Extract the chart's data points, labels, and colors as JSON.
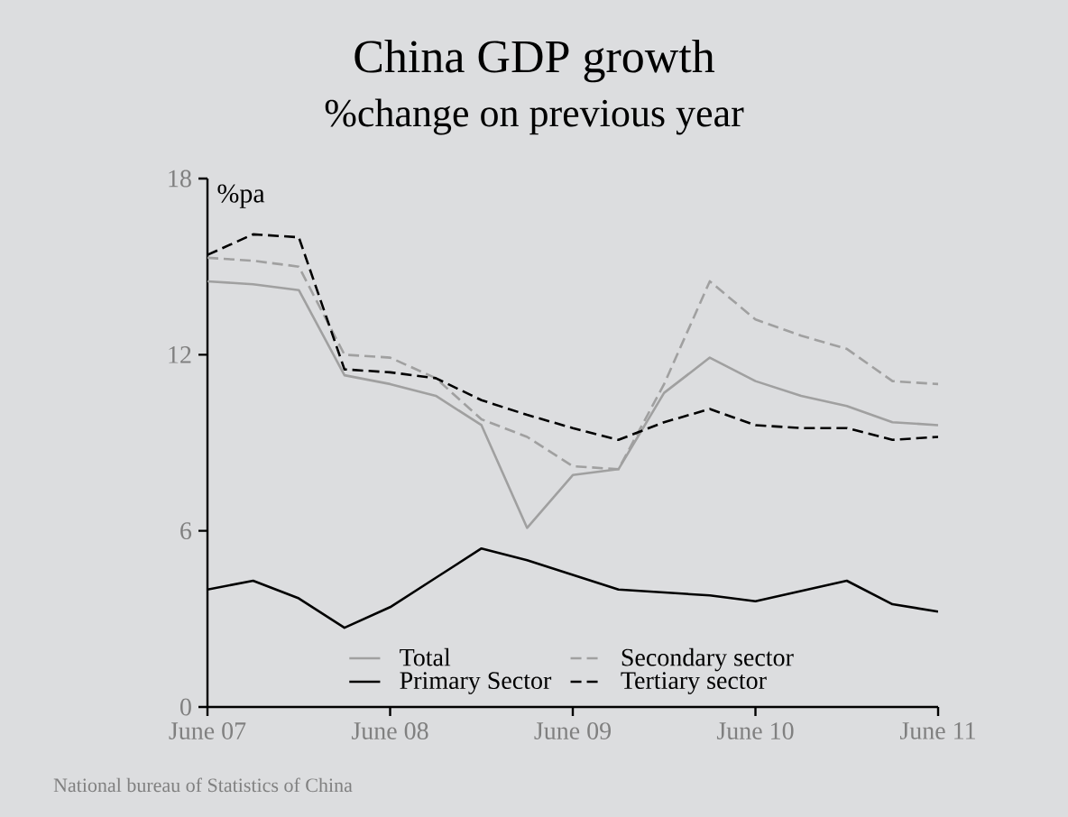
{
  "chart_data": {
    "type": "line",
    "title": "China GDP growth",
    "subtitle": "%change on previous year",
    "ylabel": "%pa",
    "categories": [
      "June 07",
      null,
      null,
      null,
      "June 08",
      null,
      null,
      null,
      "June 09",
      null,
      null,
      null,
      "June 10",
      null,
      null,
      null,
      "June 11"
    ],
    "ylim": [
      0,
      18
    ],
    "yticks": [
      0,
      6,
      12,
      18
    ],
    "series": [
      {
        "name": "Total",
        "color": "#a0a0a0",
        "line_style": "solid",
        "values": [
          14.5,
          14.4,
          14.2,
          11.3,
          11.0,
          10.6,
          9.6,
          6.1,
          7.9,
          8.1,
          10.7,
          11.9,
          11.1,
          10.6,
          10.25,
          9.7,
          9.6
        ]
      },
      {
        "name": "Secondary sector",
        "color": "#a0a0a0",
        "line_style": "dashed",
        "values": [
          15.3,
          15.2,
          15.0,
          12.0,
          11.9,
          11.2,
          9.8,
          9.2,
          8.2,
          8.1,
          11.0,
          14.5,
          13.2,
          12.65,
          12.2,
          11.1,
          11.0
        ]
      },
      {
        "name": "Primary Sector",
        "color": "#000000",
        "line_style": "solid",
        "values": [
          4.0,
          4.3,
          3.7,
          2.7,
          3.4,
          4.4,
          5.4,
          5.0,
          4.5,
          4.0,
          3.9,
          3.8,
          3.6,
          3.95,
          4.3,
          3.5,
          3.25
        ]
      },
      {
        "name": "Tertiary sector",
        "color": "#000000",
        "line_style": "dashed",
        "values": [
          15.4,
          16.1,
          16.0,
          11.5,
          11.4,
          11.2,
          10.45,
          9.95,
          9.5,
          9.1,
          9.7,
          10.15,
          9.6,
          9.5,
          9.5,
          9.1,
          9.2
        ]
      }
    ],
    "legend": "bottom",
    "grid": false,
    "marker": "none",
    "annotations": [
      "National bureau of Statistics of China"
    ]
  }
}
